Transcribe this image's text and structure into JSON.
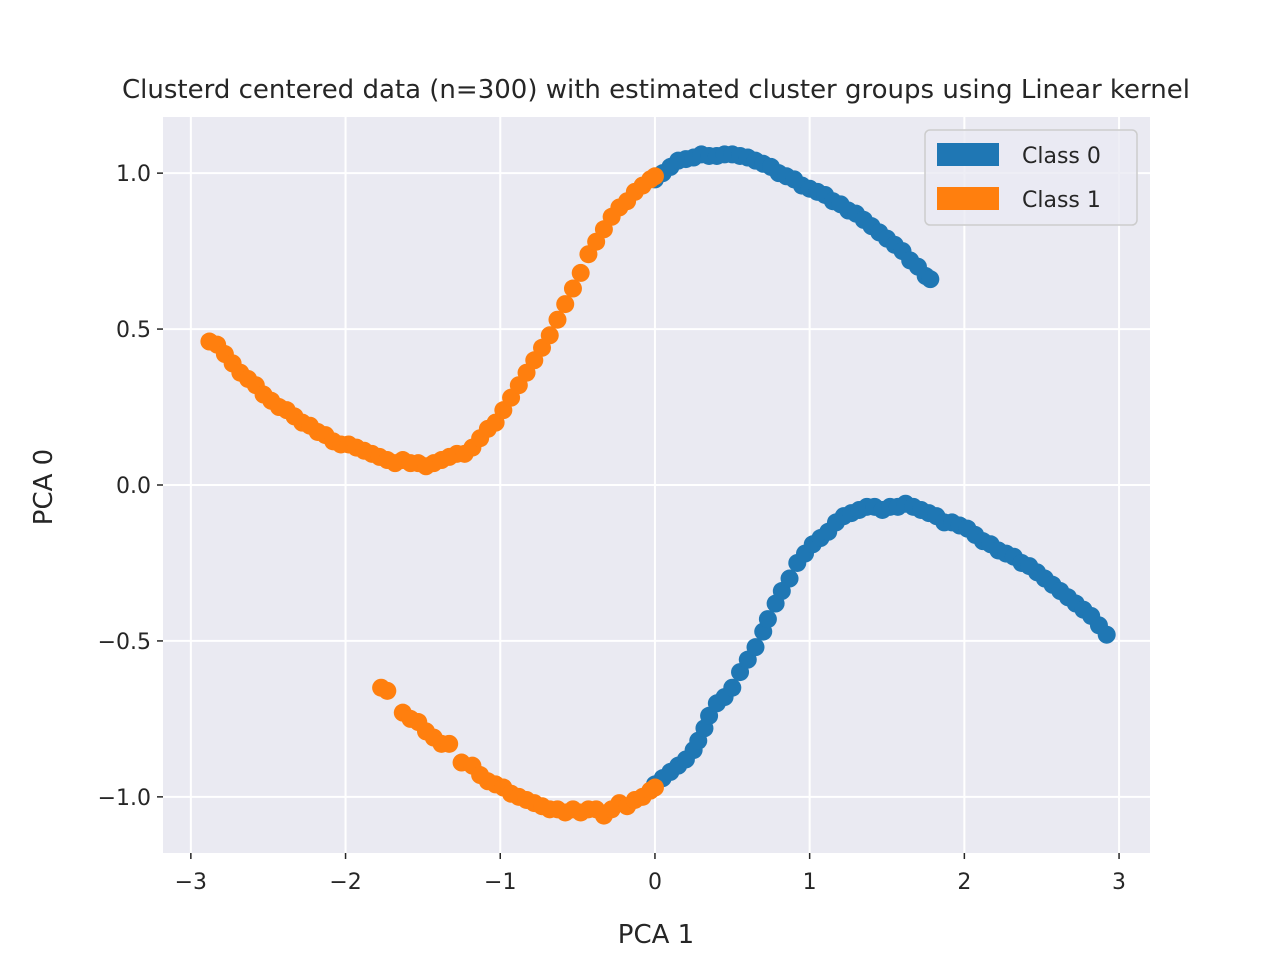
{
  "chart_data": {
    "type": "scatter",
    "title": "Clusterd centered data (n=300) with estimated cluster groups using Linear kernel",
    "xlabel": "PCA 1",
    "ylabel": "PCA 0",
    "xlim": [
      -3.18,
      3.2
    ],
    "ylim": [
      -1.18,
      1.18
    ],
    "xticks": [
      -3,
      -2,
      -1,
      0,
      1,
      2,
      3
    ],
    "xtick_labels": [
      "−3",
      "−2",
      "−1",
      "0",
      "1",
      "2",
      "3"
    ],
    "yticks": [
      -1.0,
      -0.5,
      0.0,
      0.5,
      1.0
    ],
    "ytick_labels": [
      "−1.0",
      "−0.5",
      "0.0",
      "0.5",
      "1.0"
    ],
    "grid": true,
    "background": "#eaeaf2",
    "legend_position": "top-right",
    "series": [
      {
        "name": "Class 0",
        "color": "#1f77b4",
        "points": [
          [
            0.0,
            0.98
          ],
          [
            0.05,
            1.0
          ],
          [
            0.1,
            1.02
          ],
          [
            0.15,
            1.04
          ],
          [
            0.2,
            1.045
          ],
          [
            0.25,
            1.05
          ],
          [
            0.3,
            1.06
          ],
          [
            0.35,
            1.055
          ],
          [
            0.4,
            1.055
          ],
          [
            0.45,
            1.06
          ],
          [
            0.5,
            1.06
          ],
          [
            0.55,
            1.055
          ],
          [
            0.6,
            1.05
          ],
          [
            0.65,
            1.04
          ],
          [
            0.7,
            1.03
          ],
          [
            0.75,
            1.02
          ],
          [
            0.8,
            1.0
          ],
          [
            0.85,
            0.99
          ],
          [
            0.9,
            0.98
          ],
          [
            0.95,
            0.96
          ],
          [
            1.0,
            0.95
          ],
          [
            1.05,
            0.94
          ],
          [
            1.1,
            0.93
          ],
          [
            1.15,
            0.91
          ],
          [
            1.2,
            0.9
          ],
          [
            1.25,
            0.88
          ],
          [
            1.3,
            0.87
          ],
          [
            1.35,
            0.85
          ],
          [
            1.4,
            0.83
          ],
          [
            1.45,
            0.81
          ],
          [
            1.5,
            0.79
          ],
          [
            1.55,
            0.77
          ],
          [
            1.6,
            0.75
          ],
          [
            1.65,
            0.72
          ],
          [
            1.7,
            0.7
          ],
          [
            1.75,
            0.67
          ],
          [
            1.78,
            0.66
          ],
          [
            0.0,
            -0.96
          ],
          [
            0.05,
            -0.94
          ],
          [
            0.1,
            -0.92
          ],
          [
            0.15,
            -0.9
          ],
          [
            0.2,
            -0.88
          ],
          [
            0.25,
            -0.85
          ],
          [
            0.28,
            -0.82
          ],
          [
            0.32,
            -0.78
          ],
          [
            0.35,
            -0.74
          ],
          [
            0.4,
            -0.7
          ],
          [
            0.45,
            -0.68
          ],
          [
            0.5,
            -0.65
          ],
          [
            0.55,
            -0.6
          ],
          [
            0.6,
            -0.56
          ],
          [
            0.65,
            -0.52
          ],
          [
            0.7,
            -0.47
          ],
          [
            0.73,
            -0.43
          ],
          [
            0.78,
            -0.38
          ],
          [
            0.82,
            -0.34
          ],
          [
            0.87,
            -0.3
          ],
          [
            0.92,
            -0.25
          ],
          [
            0.97,
            -0.22
          ],
          [
            1.02,
            -0.19
          ],
          [
            1.07,
            -0.17
          ],
          [
            1.12,
            -0.15
          ],
          [
            1.17,
            -0.12
          ],
          [
            1.22,
            -0.1
          ],
          [
            1.27,
            -0.09
          ],
          [
            1.32,
            -0.08
          ],
          [
            1.37,
            -0.07
          ],
          [
            1.42,
            -0.07
          ],
          [
            1.47,
            -0.08
          ],
          [
            1.52,
            -0.07
          ],
          [
            1.57,
            -0.07
          ],
          [
            1.62,
            -0.06
          ],
          [
            1.67,
            -0.07
          ],
          [
            1.72,
            -0.08
          ],
          [
            1.77,
            -0.09
          ],
          [
            1.82,
            -0.1
          ],
          [
            1.87,
            -0.12
          ],
          [
            1.92,
            -0.12
          ],
          [
            1.97,
            -0.13
          ],
          [
            2.02,
            -0.14
          ],
          [
            2.07,
            -0.16
          ],
          [
            2.12,
            -0.18
          ],
          [
            2.17,
            -0.19
          ],
          [
            2.22,
            -0.21
          ],
          [
            2.27,
            -0.22
          ],
          [
            2.32,
            -0.23
          ],
          [
            2.37,
            -0.25
          ],
          [
            2.42,
            -0.26
          ],
          [
            2.47,
            -0.28
          ],
          [
            2.52,
            -0.3
          ],
          [
            2.57,
            -0.32
          ],
          [
            2.62,
            -0.34
          ],
          [
            2.67,
            -0.36
          ],
          [
            2.72,
            -0.38
          ],
          [
            2.77,
            -0.4
          ],
          [
            2.82,
            -0.42
          ],
          [
            2.87,
            -0.45
          ],
          [
            2.92,
            -0.48
          ]
        ]
      },
      {
        "name": "Class 1",
        "color": "#ff7f0e",
        "points": [
          [
            -2.88,
            0.46
          ],
          [
            -2.83,
            0.45
          ],
          [
            -2.78,
            0.42
          ],
          [
            -2.73,
            0.39
          ],
          [
            -2.68,
            0.36
          ],
          [
            -2.63,
            0.34
          ],
          [
            -2.58,
            0.32
          ],
          [
            -2.53,
            0.29
          ],
          [
            -2.48,
            0.27
          ],
          [
            -2.43,
            0.25
          ],
          [
            -2.38,
            0.24
          ],
          [
            -2.33,
            0.22
          ],
          [
            -2.28,
            0.2
          ],
          [
            -2.23,
            0.19
          ],
          [
            -2.18,
            0.17
          ],
          [
            -2.13,
            0.16
          ],
          [
            -2.08,
            0.14
          ],
          [
            -2.03,
            0.13
          ],
          [
            -1.98,
            0.13
          ],
          [
            -1.93,
            0.12
          ],
          [
            -1.88,
            0.11
          ],
          [
            -1.83,
            0.1
          ],
          [
            -1.78,
            0.09
          ],
          [
            -1.73,
            0.08
          ],
          [
            -1.68,
            0.07
          ],
          [
            -1.63,
            0.08
          ],
          [
            -1.58,
            0.07
          ],
          [
            -1.53,
            0.07
          ],
          [
            -1.48,
            0.06
          ],
          [
            -1.43,
            0.07
          ],
          [
            -1.38,
            0.08
          ],
          [
            -1.33,
            0.09
          ],
          [
            -1.28,
            0.1
          ],
          [
            -1.23,
            0.1
          ],
          [
            -1.18,
            0.12
          ],
          [
            -1.13,
            0.15
          ],
          [
            -1.08,
            0.18
          ],
          [
            -1.03,
            0.2
          ],
          [
            -0.98,
            0.24
          ],
          [
            -0.93,
            0.28
          ],
          [
            -0.88,
            0.32
          ],
          [
            -0.83,
            0.36
          ],
          [
            -0.78,
            0.4
          ],
          [
            -0.73,
            0.44
          ],
          [
            -0.68,
            0.48
          ],
          [
            -0.63,
            0.53
          ],
          [
            -0.58,
            0.58
          ],
          [
            -0.53,
            0.63
          ],
          [
            -0.48,
            0.68
          ],
          [
            -0.43,
            0.74
          ],
          [
            -0.38,
            0.78
          ],
          [
            -0.33,
            0.82
          ],
          [
            -0.28,
            0.86
          ],
          [
            -0.23,
            0.89
          ],
          [
            -0.18,
            0.91
          ],
          [
            -0.13,
            0.94
          ],
          [
            -0.08,
            0.96
          ],
          [
            -0.03,
            0.98
          ],
          [
            0.0,
            0.99
          ],
          [
            -1.77,
            -0.65
          ],
          [
            -1.73,
            -0.66
          ],
          [
            -1.63,
            -0.73
          ],
          [
            -1.58,
            -0.75
          ],
          [
            -1.53,
            -0.76
          ],
          [
            -1.48,
            -0.79
          ],
          [
            -1.43,
            -0.81
          ],
          [
            -1.38,
            -0.83
          ],
          [
            -1.33,
            -0.83
          ],
          [
            -1.25,
            -0.89
          ],
          [
            -1.18,
            -0.9
          ],
          [
            -1.13,
            -0.93
          ],
          [
            -1.08,
            -0.95
          ],
          [
            -1.03,
            -0.96
          ],
          [
            -0.98,
            -0.97
          ],
          [
            -0.93,
            -0.99
          ],
          [
            -0.88,
            -1.0
          ],
          [
            -0.83,
            -1.01
          ],
          [
            -0.78,
            -1.02
          ],
          [
            -0.73,
            -1.03
          ],
          [
            -0.68,
            -1.04
          ],
          [
            -0.63,
            -1.04
          ],
          [
            -0.58,
            -1.05
          ],
          [
            -0.53,
            -1.04
          ],
          [
            -0.48,
            -1.05
          ],
          [
            -0.43,
            -1.04
          ],
          [
            -0.38,
            -1.04
          ],
          [
            -0.33,
            -1.06
          ],
          [
            -0.28,
            -1.04
          ],
          [
            -0.23,
            -1.02
          ],
          [
            -0.18,
            -1.03
          ],
          [
            -0.13,
            -1.01
          ],
          [
            -0.08,
            -1.0
          ],
          [
            -0.03,
            -0.98
          ],
          [
            0.0,
            -0.97
          ]
        ]
      }
    ]
  }
}
